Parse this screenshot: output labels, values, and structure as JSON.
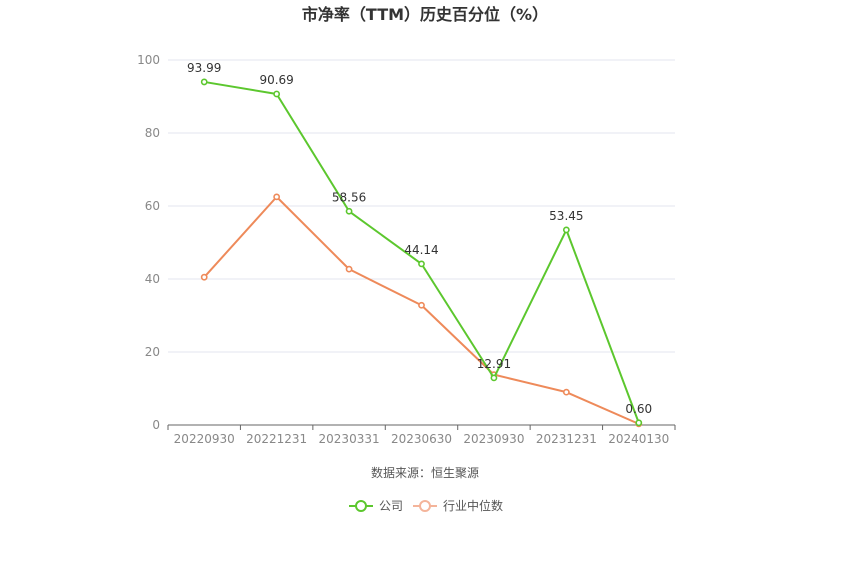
{
  "chart_data": {
    "type": "line",
    "title": "市净率（TTM）历史百分位（%）",
    "source": "数据来源：恒生聚源",
    "categories": [
      "20220930",
      "20221231",
      "20230331",
      "20230630",
      "20230930",
      "20231231",
      "20240130"
    ],
    "ylim": [
      0,
      100
    ],
    "yticks": [
      0,
      20,
      40,
      60,
      80,
      100
    ],
    "grid": true,
    "legend_position": "bottom-center",
    "series": [
      {
        "name": "公司",
        "color": "#5cc72e",
        "values": [
          93.99,
          90.69,
          58.56,
          44.14,
          12.91,
          53.45,
          0.6
        ],
        "labels": [
          "93.99",
          "90.69",
          "58.56",
          "44.14",
          "12.91",
          "53.45",
          "0.60"
        ],
        "show_labels": true
      },
      {
        "name": "行业中位数",
        "color": "#ee8a5a",
        "values": [
          40.5,
          62.5,
          42.7,
          32.8,
          13.8,
          9.0,
          0.3
        ],
        "show_labels": false
      }
    ]
  }
}
